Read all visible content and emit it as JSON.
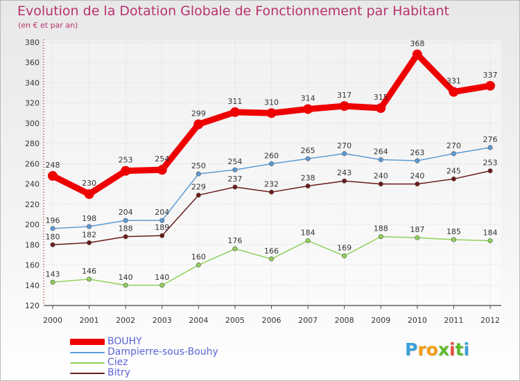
{
  "chart_data": {
    "type": "line",
    "title": "Evolution de la Dotation Globale de Fonctionnement par Habitant",
    "subtitle": "(en € et par an)",
    "x": [
      2000,
      2001,
      2002,
      2003,
      2004,
      2005,
      2006,
      2007,
      2008,
      2009,
      2010,
      2011,
      2012
    ],
    "x_tick_labels": [
      "2000",
      "2001",
      "2002",
      "2003",
      "2004",
      "2005",
      "2006",
      "2007",
      "2008",
      "2009",
      "2010",
      "2011",
      "2012"
    ],
    "y_ticks": [
      120,
      140,
      160,
      180,
      200,
      220,
      240,
      260,
      280,
      300,
      320,
      340,
      360,
      380
    ],
    "y_tick_labels": [
      "120",
      "140",
      "160",
      "180",
      "200",
      "220",
      "240",
      "260",
      "280",
      "300",
      "320",
      "340",
      "360",
      "380"
    ],
    "ylim": [
      120,
      380
    ],
    "grid": true,
    "legend_position": "bottom-left",
    "series": [
      {
        "name": "BOUHY",
        "color": "#ee0000",
        "emphasis": true,
        "values": [
          248,
          230,
          253,
          254,
          299,
          311,
          310,
          314,
          317,
          315,
          368,
          331,
          337
        ],
        "labels": [
          "248",
          "230",
          "253",
          "254",
          "299",
          "311",
          "310",
          "314",
          "317",
          "315",
          "368",
          "331",
          "337"
        ],
        "label_color": "#333333"
      },
      {
        "name": "Dampierre-sous-Bouhy",
        "color": "#5b9bd5",
        "emphasis": false,
        "values": [
          196,
          198,
          204,
          204,
          250,
          254,
          260,
          265,
          270,
          264,
          263,
          270,
          276
        ],
        "labels": [
          "196",
          "198",
          "204",
          "204",
          "250",
          "254",
          "260",
          "265",
          "270",
          "264",
          "263",
          "270",
          "276"
        ],
        "label_color": "#333333"
      },
      {
        "name": "Ciez",
        "color": "#8fd158",
        "emphasis": false,
        "values": [
          143,
          146,
          140,
          140,
          160,
          176,
          166,
          184,
          169,
          188,
          187,
          185,
          184
        ],
        "labels": [
          "143",
          "146",
          "140",
          "140",
          "160",
          "176",
          "166",
          "184",
          "169",
          "188",
          "187",
          "185",
          "184"
        ],
        "label_color": "#333333"
      },
      {
        "name": "Bitry",
        "color": "#6b1a1a",
        "emphasis": false,
        "values": [
          180,
          182,
          188,
          189,
          229,
          237,
          232,
          238,
          243,
          240,
          240,
          245,
          253
        ],
        "labels": [
          "180",
          "182",
          "188",
          "189",
          "229",
          "237",
          "232",
          "238",
          "243",
          "240",
          "240",
          "245",
          "253"
        ],
        "label_color": "#333333"
      }
    ]
  },
  "logo": {
    "text": "Proxiti",
    "letters": [
      "P",
      "r",
      "o",
      "x",
      "i",
      "t",
      "i"
    ],
    "colors": [
      "#3aa0d8",
      "#f39c12",
      "#f39c12",
      "#5bb82a",
      "#e74c3c",
      "#5bb82a",
      "#3aa0d8"
    ]
  }
}
